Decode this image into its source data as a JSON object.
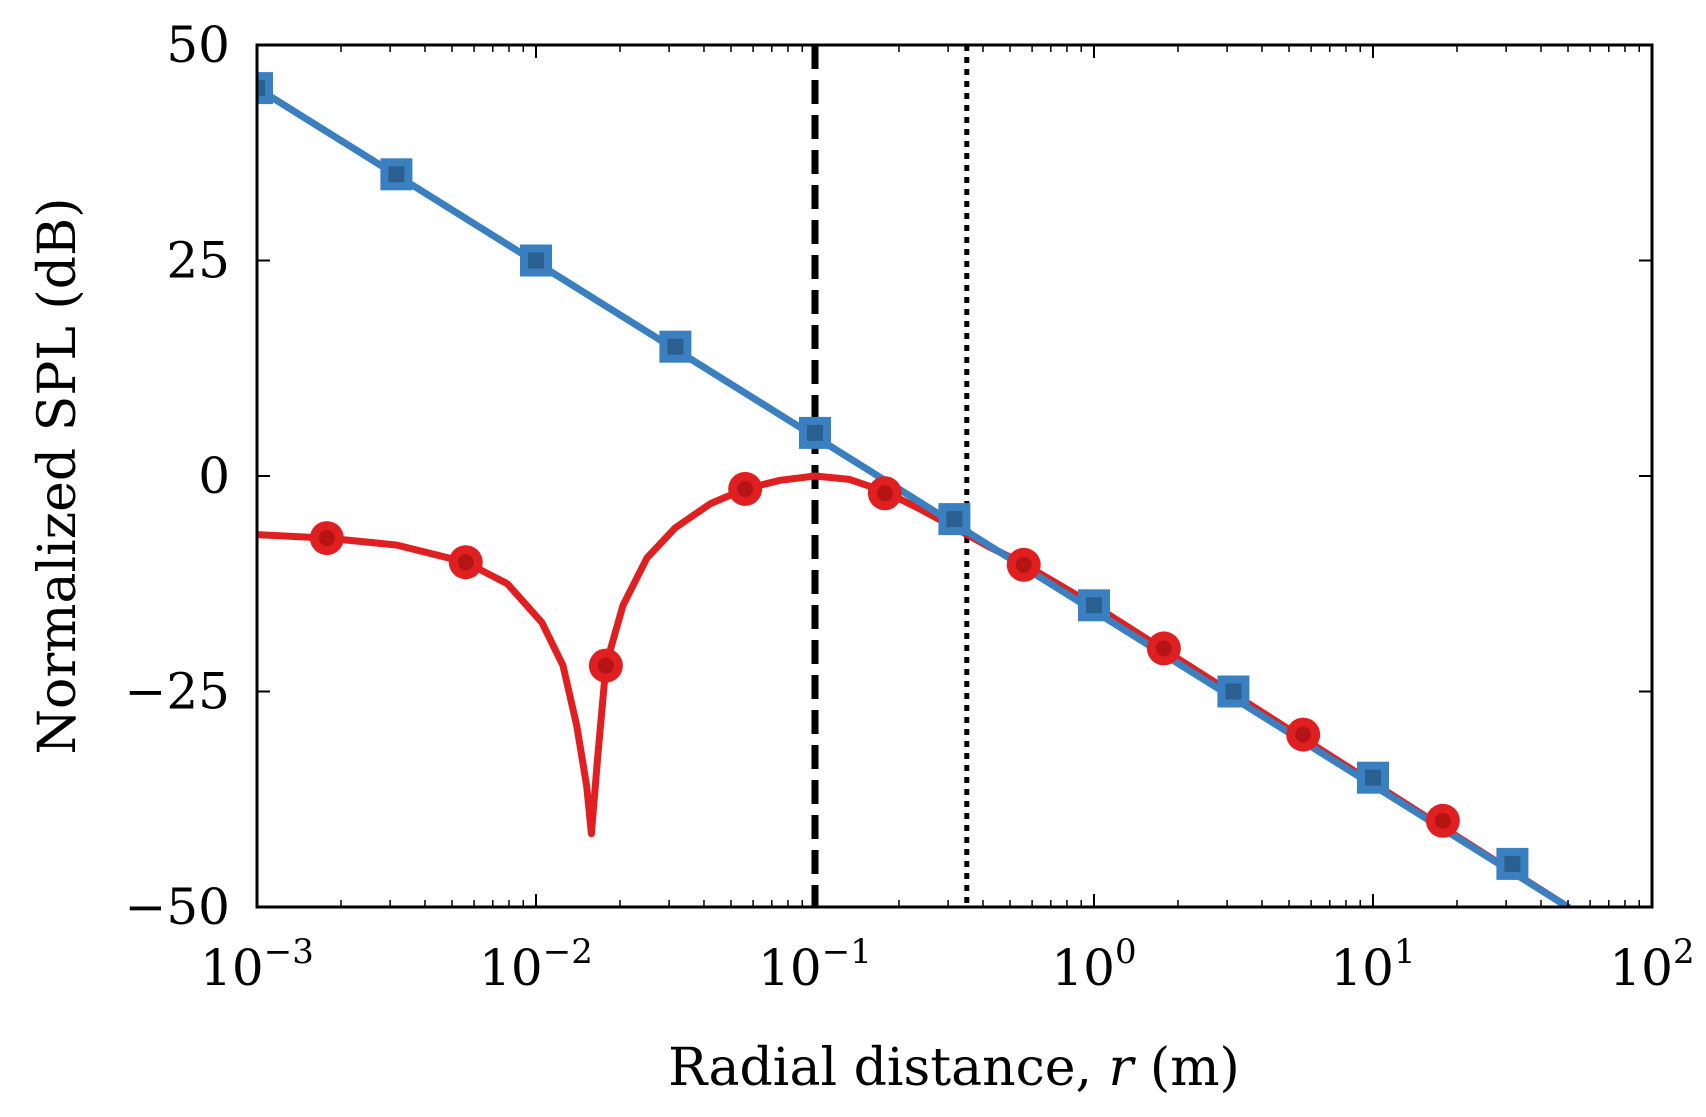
{
  "chart_data": {
    "type": "line",
    "x_scale": "log",
    "xlim": [
      0.001,
      100
    ],
    "ylim": [
      -50,
      50
    ],
    "x_ticks": [
      {
        "base": "10",
        "exp": "−3"
      },
      {
        "base": "10",
        "exp": "−2"
      },
      {
        "base": "10",
        "exp": "−1"
      },
      {
        "base": "10",
        "exp": "0"
      },
      {
        "base": "10",
        "exp": "1"
      },
      {
        "base": "10",
        "exp": "2"
      }
    ],
    "y_ticks": [
      "50",
      "25",
      "0",
      "−25",
      "−50"
    ],
    "y_tick_values": [
      50,
      25,
      0,
      -25,
      -50
    ],
    "xlabel_prefix": "Radial distance, ",
    "xlabel_var": "r",
    "xlabel_suffix": " (m)",
    "ylabel": "Normalized SPL (dB)",
    "grid": false,
    "legend": "none",
    "series": [
      {
        "color": "#3a80c0",
        "marker": "square",
        "line": [
          [
            0.001,
            45
          ],
          [
            50,
            -50
          ]
        ],
        "markers": [
          [
            0.001,
            45
          ],
          [
            0.00316,
            35
          ],
          [
            0.01,
            25
          ],
          [
            0.0316,
            15
          ],
          [
            0.1,
            5
          ],
          [
            0.316,
            -5
          ],
          [
            1,
            -15
          ],
          [
            3.16,
            -25
          ],
          [
            10,
            -35
          ],
          [
            31.6,
            -45
          ]
        ]
      },
      {
        "color": "#e02020",
        "marker": "circle",
        "line": [
          [
            0.001,
            -6.8
          ],
          [
            0.00178,
            -7.2
          ],
          [
            0.00316,
            -8
          ],
          [
            0.0056,
            -10
          ],
          [
            0.0079,
            -12.5
          ],
          [
            0.0105,
            -17
          ],
          [
            0.0125,
            -22
          ],
          [
            0.014,
            -29
          ],
          [
            0.0152,
            -36
          ],
          [
            0.0158,
            -41.5
          ],
          [
            0.0166,
            -33
          ],
          [
            0.0178,
            -22
          ],
          [
            0.0205,
            -15
          ],
          [
            0.025,
            -9.5
          ],
          [
            0.0316,
            -6
          ],
          [
            0.0422,
            -3.2
          ],
          [
            0.0562,
            -1.5
          ],
          [
            0.075,
            -0.5
          ],
          [
            0.1,
            0
          ],
          [
            0.133,
            -0.4
          ],
          [
            0.178,
            -1.8
          ],
          [
            0.237,
            -3.8
          ],
          [
            0.316,
            -6
          ],
          [
            0.42,
            -8.2
          ],
          [
            0.56,
            -10.2
          ],
          [
            1,
            -15
          ],
          [
            50,
            -50
          ]
        ],
        "markers": [
          [
            0.00178,
            -7.2
          ],
          [
            0.0056,
            -10
          ],
          [
            0.0178,
            -22
          ],
          [
            0.0562,
            -1.5
          ],
          [
            0.178,
            -2
          ],
          [
            0.56,
            -10.3
          ],
          [
            1.78,
            -20
          ],
          [
            5.62,
            -30
          ],
          [
            17.8,
            -40
          ]
        ]
      }
    ],
    "reference_lines": [
      {
        "x": 0.1,
        "style": "dashed",
        "color": "#000000"
      },
      {
        "x": 0.35,
        "style": "dotted",
        "color": "#000000"
      }
    ]
  }
}
